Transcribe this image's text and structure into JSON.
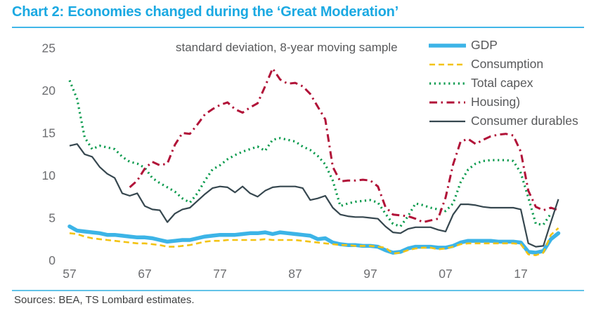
{
  "header": {
    "title": "Chart 2: Economies changed during the ‘Great Moderation’"
  },
  "footer": {
    "sources": "Sources: BEA, TS Lombard estimates."
  },
  "colors": {
    "title_text": "#1ba9e2",
    "title_rule": "#41b6e8",
    "footer_rule": "#62c3e8",
    "subtitle_text": "#58595b",
    "legend_text": "#58595b",
    "axis_text": "#6d6e71",
    "sources_text": "#3f4041",
    "background": "#ffffff"
  },
  "chart_data": {
    "type": "line",
    "subtitle": "standard deviation, 8-year moving sample",
    "grid": false,
    "axis_lines": false,
    "legend_position": "top-right",
    "ylim": [
      0,
      25
    ],
    "y_ticks": [
      0,
      5,
      10,
      15,
      20,
      25
    ],
    "y_tick_labels": [
      "0",
      "5",
      "10",
      "15",
      "20",
      "25"
    ],
    "x_tick_years": [
      1957,
      1967,
      1977,
      1987,
      1997,
      2007,
      2017
    ],
    "x_tick_labels": [
      "57",
      "67",
      "77",
      "87",
      "97",
      "07",
      "17"
    ],
    "x": [
      1957,
      1958,
      1959,
      1960,
      1961,
      1962,
      1963,
      1964,
      1965,
      1966,
      1967,
      1968,
      1969,
      1970,
      1971,
      1972,
      1973,
      1974,
      1975,
      1976,
      1977,
      1978,
      1979,
      1980,
      1981,
      1982,
      1983,
      1984,
      1985,
      1986,
      1987,
      1988,
      1989,
      1990,
      1991,
      1992,
      1993,
      1994,
      1995,
      1996,
      1997,
      1998,
      1999,
      2000,
      2001,
      2002,
      2003,
      2004,
      2005,
      2006,
      2007,
      2008,
      2009,
      2010,
      2011,
      2012,
      2013,
      2014,
      2015,
      2016,
      2017,
      2018,
      2019,
      2020,
      2021,
      2022
    ],
    "series": [
      {
        "name": "GDP",
        "color": "#3cb4e7",
        "style": "solid-thick",
        "values": [
          4.0,
          3.5,
          3.4,
          3.3,
          3.2,
          3.0,
          3.0,
          2.9,
          2.8,
          2.7,
          2.7,
          2.6,
          2.4,
          2.2,
          2.3,
          2.4,
          2.4,
          2.6,
          2.8,
          2.9,
          3.0,
          3.0,
          3.0,
          3.1,
          3.2,
          3.2,
          3.3,
          3.1,
          3.3,
          3.2,
          3.1,
          3.0,
          2.9,
          2.5,
          2.6,
          2.1,
          1.9,
          1.8,
          1.8,
          1.7,
          1.7,
          1.6,
          1.2,
          0.9,
          1.0,
          1.4,
          1.6,
          1.6,
          1.6,
          1.5,
          1.5,
          1.7,
          2.1,
          2.3,
          2.3,
          2.3,
          2.3,
          2.2,
          2.2,
          2.2,
          2.1,
          1.0,
          0.9,
          1.1,
          2.5,
          3.2
        ]
      },
      {
        "name": "Consumption",
        "color": "#f3c313",
        "style": "dashed",
        "values": [
          3.2,
          3.1,
          2.8,
          2.6,
          2.5,
          2.4,
          2.3,
          2.2,
          2.1,
          2.0,
          2.0,
          1.9,
          1.8,
          1.6,
          1.6,
          1.7,
          1.8,
          2.0,
          2.2,
          2.3,
          2.3,
          2.4,
          2.4,
          2.4,
          2.4,
          2.4,
          2.5,
          2.4,
          2.4,
          2.4,
          2.4,
          2.3,
          2.2,
          2.1,
          2.0,
          1.9,
          1.8,
          1.8,
          1.7,
          1.7,
          1.7,
          1.6,
          1.5,
          0.8,
          0.9,
          1.2,
          1.4,
          1.5,
          1.5,
          1.3,
          1.4,
          1.6,
          1.9,
          2.0,
          2.0,
          2.0,
          2.0,
          2.0,
          2.0,
          2.0,
          1.9,
          0.7,
          0.6,
          0.9,
          3.0,
          3.8
        ]
      },
      {
        "name": "Total capex",
        "color": "#0b9b4e",
        "style": "dotted",
        "values": [
          21.2,
          19.0,
          14.5,
          13.1,
          13.5,
          13.3,
          13.1,
          12.2,
          11.6,
          11.4,
          10.9,
          9.7,
          9.1,
          8.6,
          8.1,
          7.3,
          6.8,
          7.9,
          9.4,
          10.7,
          11.2,
          11.9,
          12.4,
          12.8,
          13.1,
          13.4,
          12.9,
          14.2,
          14.4,
          14.2,
          14.0,
          13.4,
          13.0,
          12.3,
          11.3,
          9.4,
          6.4,
          6.7,
          6.9,
          7.0,
          7.1,
          6.8,
          5.5,
          4.3,
          4.0,
          5.2,
          6.7,
          6.5,
          6.2,
          6.0,
          5.8,
          6.7,
          9.2,
          10.7,
          11.4,
          11.7,
          11.8,
          11.8,
          11.8,
          11.7,
          10.3,
          7.4,
          4.3,
          4.2,
          5.5,
          null
        ]
      },
      {
        "name": "Housing)",
        "color": "#b11238",
        "style": "dash-dot",
        "values": [
          null,
          null,
          null,
          null,
          null,
          null,
          null,
          null,
          8.6,
          9.4,
          10.8,
          11.6,
          11.2,
          11.4,
          13.6,
          15.0,
          14.9,
          16.0,
          17.2,
          17.8,
          18.3,
          18.6,
          17.8,
          17.4,
          18.0,
          18.5,
          20.5,
          22.6,
          21.3,
          20.8,
          20.9,
          20.5,
          19.6,
          18.1,
          16.6,
          11.0,
          9.3,
          9.4,
          9.4,
          9.5,
          9.4,
          8.7,
          6.3,
          5.4,
          5.3,
          5.2,
          4.9,
          4.5,
          4.7,
          4.9,
          7.4,
          11.3,
          14.0,
          14.3,
          13.7,
          14.2,
          14.6,
          14.8,
          14.9,
          14.7,
          12.8,
          8.2,
          6.3,
          5.9,
          6.2,
          5.9
        ]
      },
      {
        "name": "Consumer durables",
        "color": "#36474f",
        "style": "solid-thin",
        "values": [
          13.5,
          13.7,
          12.5,
          12.2,
          11.0,
          10.2,
          9.7,
          7.9,
          7.6,
          7.9,
          6.4,
          6.0,
          5.9,
          4.5,
          5.5,
          6.0,
          6.2,
          7.0,
          7.8,
          8.5,
          8.7,
          8.6,
          8.0,
          8.7,
          7.9,
          7.5,
          8.2,
          8.6,
          8.7,
          8.7,
          8.7,
          8.5,
          7.1,
          7.3,
          7.6,
          6.2,
          5.4,
          5.2,
          5.1,
          5.1,
          5.0,
          4.9,
          4.0,
          3.3,
          3.2,
          3.7,
          3.9,
          3.9,
          3.9,
          3.6,
          3.4,
          5.4,
          6.6,
          6.6,
          6.5,
          6.3,
          6.2,
          6.2,
          6.2,
          6.2,
          6.0,
          2.0,
          1.6,
          1.7,
          4.5,
          7.2
        ]
      }
    ]
  }
}
